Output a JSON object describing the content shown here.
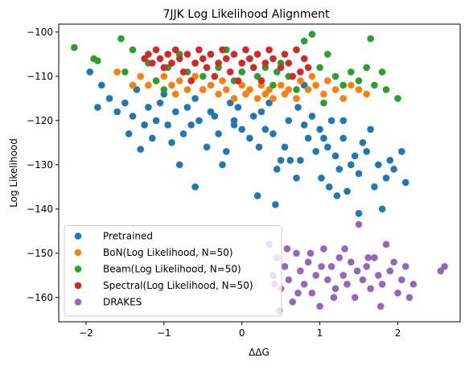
{
  "chart_data": {
    "type": "scatter",
    "title": "7JJK Log Likelihood Alignment",
    "xlabel": "ΔΔG",
    "ylabel": "Log Likelihood",
    "xlim": [
      -2.35,
      2.8
    ],
    "ylim": [
      -165.5,
      -98.2
    ],
    "xticks": [
      -2,
      -1,
      0,
      1,
      2
    ],
    "yticks": [
      -100,
      -110,
      -120,
      -130,
      -140,
      -150,
      -160
    ],
    "grid": false,
    "legend_position": "lower-left",
    "series": [
      {
        "name": "Pretrained",
        "color": "#1f77b4",
        "points": [
          [
            -1.85,
            -117
          ],
          [
            -1.8,
            -112
          ],
          [
            -1.7,
            -115
          ],
          [
            -1.6,
            -118
          ],
          [
            -1.5,
            -116
          ],
          [
            -1.45,
            -123
          ],
          [
            -1.4,
            -119
          ],
          [
            -1.35,
            -113
          ],
          [
            -1.3,
            -126.5
          ],
          [
            -1.25,
            -121
          ],
          [
            -1.2,
            -117
          ],
          [
            -1.15,
            -124
          ],
          [
            -1.1,
            -120
          ],
          [
            -1.05,
            -116
          ],
          [
            -1.0,
            -114
          ],
          [
            -0.95,
            -121
          ],
          [
            -0.9,
            -125
          ],
          [
            -0.85,
            -118
          ],
          [
            -0.8,
            -130
          ],
          [
            -0.75,
            -123
          ],
          [
            -0.7,
            -117
          ],
          [
            -0.65,
            -121
          ],
          [
            -0.6,
            -115
          ],
          [
            -0.55,
            -120
          ],
          [
            -0.5,
            -113
          ],
          [
            -0.45,
            -126
          ],
          [
            -0.4,
            -118
          ],
          [
            -0.35,
            -119
          ],
          [
            -0.3,
            -123
          ],
          [
            -0.25,
            -130
          ],
          [
            -0.2,
            -127
          ],
          [
            -0.15,
            -116
          ],
          [
            -0.1,
            -121
          ],
          [
            -0.05,
            -117
          ],
          [
            0.0,
            -122
          ],
          [
            0.05,
            -114
          ],
          [
            0.1,
            -124
          ],
          [
            0.15,
            -119
          ],
          [
            0.2,
            -137
          ],
          [
            0.22,
            -126
          ],
          [
            0.25,
            -118
          ],
          [
            0.3,
            -122
          ],
          [
            0.35,
            -116
          ],
          [
            0.4,
            -123
          ],
          [
            0.45,
            -131
          ],
          [
            0.5,
            -129
          ],
          [
            0.55,
            -126
          ],
          [
            0.6,
            -120
          ],
          [
            0.62,
            -129
          ],
          [
            0.7,
            -133
          ],
          [
            0.72,
            -117
          ],
          [
            0.75,
            -129
          ],
          [
            0.8,
            -121
          ],
          [
            0.85,
            -124
          ],
          [
            0.9,
            -119
          ],
          [
            0.95,
            -127
          ],
          [
            1.0,
            -122
          ],
          [
            1.02,
            -133
          ],
          [
            1.05,
            -124
          ],
          [
            1.1,
            -126
          ],
          [
            1.12,
            -135
          ],
          [
            1.15,
            -120
          ],
          [
            1.2,
            -128
          ],
          [
            1.22,
            -137
          ],
          [
            1.25,
            -131
          ],
          [
            1.3,
            -124
          ],
          [
            1.35,
            -136
          ],
          [
            1.4,
            -130
          ],
          [
            1.45,
            -128
          ],
          [
            1.5,
            -132
          ],
          [
            1.55,
            -125
          ],
          [
            1.6,
            -127
          ],
          [
            1.65,
            -122
          ],
          [
            1.7,
            -135
          ],
          [
            1.75,
            -130
          ],
          [
            1.8,
            -140
          ],
          [
            1.85,
            -133
          ],
          [
            1.9,
            -129
          ],
          [
            1.95,
            -131
          ],
          [
            2.05,
            -127
          ],
          [
            2.1,
            -134
          ],
          [
            -0.6,
            -135
          ],
          [
            -0.1,
            -120
          ],
          [
            -1.95,
            -109
          ],
          [
            0.8,
            -112
          ],
          [
            0.43,
            -139
          ],
          [
            1.3,
            -120
          ],
          [
            1.5,
            -141
          ]
        ]
      },
      {
        "name": "BoN(Log Likelihood, N=50)",
        "color": "#ff7f0e",
        "points": [
          [
            -1.6,
            -109
          ],
          [
            -1.4,
            -112
          ],
          [
            -1.3,
            -110
          ],
          [
            -1.2,
            -112
          ],
          [
            -1.1,
            -111
          ],
          [
            -1.0,
            -110
          ],
          [
            -0.9,
            -112
          ],
          [
            -0.85,
            -114
          ],
          [
            -0.8,
            -111
          ],
          [
            -0.7,
            -113
          ],
          [
            -0.6,
            -110
          ],
          [
            -0.5,
            -113
          ],
          [
            -0.4,
            -112
          ],
          [
            -0.3,
            -114
          ],
          [
            -0.25,
            -111
          ],
          [
            -0.2,
            -113
          ],
          [
            -0.1,
            -115
          ],
          [
            0.0,
            -112
          ],
          [
            0.05,
            -114
          ],
          [
            0.1,
            -113
          ],
          [
            0.2,
            -115
          ],
          [
            0.25,
            -112
          ],
          [
            0.3,
            -114
          ],
          [
            0.35,
            -113
          ],
          [
            0.4,
            -115
          ],
          [
            0.5,
            -112
          ],
          [
            0.55,
            -114
          ],
          [
            0.6,
            -113
          ],
          [
            0.7,
            -115
          ],
          [
            0.75,
            -111
          ],
          [
            0.85,
            -113
          ],
          [
            0.9,
            -110
          ],
          [
            0.95,
            -112
          ],
          [
            1.05,
            -114
          ],
          [
            1.1,
            -111
          ],
          [
            1.2,
            -113
          ],
          [
            1.3,
            -115
          ],
          [
            1.4,
            -112
          ],
          [
            1.5,
            -113
          ],
          [
            1.6,
            -114
          ]
        ]
      },
      {
        "name": "Beam(Log Likelihood, N=50)",
        "color": "#2ca02c",
        "points": [
          [
            -2.15,
            -103.5
          ],
          [
            -1.85,
            -106.5
          ],
          [
            -1.55,
            -101.5
          ],
          [
            -1.5,
            -109
          ],
          [
            -1.4,
            -104
          ],
          [
            -1.2,
            -107
          ],
          [
            -1.1,
            -111
          ],
          [
            -0.95,
            -108
          ],
          [
            -0.8,
            -105
          ],
          [
            -0.7,
            -109
          ],
          [
            -0.6,
            -107
          ],
          [
            -0.5,
            -110
          ],
          [
            -0.4,
            -105
          ],
          [
            -0.3,
            -108
          ],
          [
            -0.2,
            -104
          ],
          [
            -0.1,
            -111
          ],
          [
            0.0,
            -109
          ],
          [
            0.1,
            -106
          ],
          [
            0.2,
            -110
          ],
          [
            0.3,
            -108
          ],
          [
            0.4,
            -112
          ],
          [
            0.5,
            -107
          ],
          [
            0.6,
            -110
          ],
          [
            0.7,
            -113
          ],
          [
            0.8,
            -102
          ],
          [
            0.9,
            -100.5
          ],
          [
            1.0,
            -108
          ],
          [
            1.1,
            -105
          ],
          [
            1.2,
            -110
          ],
          [
            1.3,
            -112
          ],
          [
            1.4,
            -109
          ],
          [
            1.5,
            -111
          ],
          [
            1.6,
            -108
          ],
          [
            1.65,
            -101.5
          ],
          [
            1.7,
            -112
          ],
          [
            1.8,
            -109
          ],
          [
            1.85,
            -113
          ],
          [
            2.0,
            -115
          ],
          [
            -1.9,
            -106
          ],
          [
            -1.0,
            -113
          ],
          [
            0.45,
            -109
          ],
          [
            1.05,
            -116
          ]
        ]
      },
      {
        "name": "Spectral(Log Likelihood, N=50)",
        "color": "#d62728",
        "points": [
          [
            -1.25,
            -106
          ],
          [
            -1.2,
            -105
          ],
          [
            -1.15,
            -107
          ],
          [
            -1.1,
            -104
          ],
          [
            -1.05,
            -106
          ],
          [
            -1.0,
            -108
          ],
          [
            -0.95,
            -105
          ],
          [
            -0.9,
            -107
          ],
          [
            -0.85,
            -104
          ],
          [
            -0.8,
            -106
          ],
          [
            -0.75,
            -109
          ],
          [
            -0.7,
            -105
          ],
          [
            -0.6,
            -107
          ],
          [
            -0.55,
            -104
          ],
          [
            -0.5,
            -106
          ],
          [
            -0.45,
            -108
          ],
          [
            -0.4,
            -105
          ],
          [
            -0.3,
            -107
          ],
          [
            -0.25,
            -104
          ],
          [
            -0.2,
            -106
          ],
          [
            -0.15,
            -109
          ],
          [
            -0.1,
            -105
          ],
          [
            0.0,
            -107
          ],
          [
            0.05,
            -104
          ],
          [
            0.1,
            -106
          ],
          [
            0.15,
            -108
          ],
          [
            0.2,
            -105
          ],
          [
            0.3,
            -107
          ],
          [
            0.35,
            -104
          ],
          [
            0.4,
            -106
          ],
          [
            0.5,
            -108
          ],
          [
            0.55,
            -105
          ],
          [
            0.6,
            -107
          ],
          [
            0.7,
            -104
          ],
          [
            0.75,
            -109
          ],
          [
            0.8,
            -106
          ],
          [
            0.85,
            -108
          ],
          [
            -0.65,
            -111
          ],
          [
            -0.35,
            -110
          ],
          [
            0.25,
            -111
          ],
          [
            0.65,
            -110
          ],
          [
            -0.05,
            -111
          ]
        ]
      },
      {
        "name": "DRAKES",
        "color": "#9467bd",
        "points": [
          [
            0.35,
            -148
          ],
          [
            0.4,
            -155
          ],
          [
            0.45,
            -151
          ],
          [
            0.5,
            -158
          ],
          [
            0.55,
            -153
          ],
          [
            0.6,
            -156
          ],
          [
            0.65,
            -161
          ],
          [
            0.7,
            -150
          ],
          [
            0.75,
            -154
          ],
          [
            0.8,
            -157
          ],
          [
            0.85,
            -152
          ],
          [
            0.9,
            -159
          ],
          [
            0.95,
            -155
          ],
          [
            1.0,
            -162
          ],
          [
            1.05,
            -149
          ],
          [
            1.1,
            -156
          ],
          [
            1.15,
            -153
          ],
          [
            1.2,
            -158
          ],
          [
            1.25,
            -151
          ],
          [
            1.3,
            -155
          ],
          [
            1.35,
            -157
          ],
          [
            1.4,
            -152
          ],
          [
            1.45,
            -160
          ],
          [
            1.5,
            -143.5
          ],
          [
            1.55,
            -156
          ],
          [
            1.6,
            -153
          ],
          [
            1.65,
            -158
          ],
          [
            1.7,
            -151
          ],
          [
            1.75,
            -155
          ],
          [
            1.8,
            -157
          ],
          [
            1.85,
            -148
          ],
          [
            1.9,
            -154
          ],
          [
            1.95,
            -152
          ],
          [
            2.0,
            -159
          ],
          [
            2.05,
            -156
          ],
          [
            2.1,
            -153
          ],
          [
            2.15,
            -160
          ],
          [
            2.2,
            -157
          ],
          [
            2.55,
            -154
          ],
          [
            2.6,
            -153
          ],
          [
            0.42,
            -157
          ],
          [
            0.58,
            -149
          ],
          [
            0.72,
            -159
          ],
          [
            0.88,
            -150
          ],
          [
            1.02,
            -153
          ],
          [
            1.18,
            -160
          ],
          [
            1.32,
            -149
          ],
          [
            1.48,
            -154
          ],
          [
            1.62,
            -151
          ],
          [
            1.78,
            -162
          ],
          [
            0.48,
            -163
          ]
        ]
      }
    ]
  }
}
